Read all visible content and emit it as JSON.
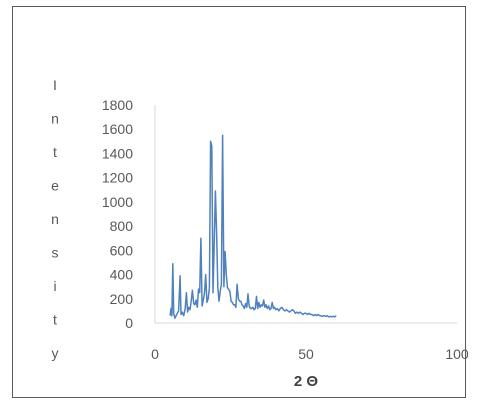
{
  "chart_data": {
    "type": "line",
    "title": "",
    "xlabel": "2 Θ",
    "ylabel": "Intensity",
    "xlim": [
      0,
      100
    ],
    "ylim": [
      0,
      1800
    ],
    "x_ticks": [
      0,
      50,
      100
    ],
    "y_ticks": [
      0,
      200,
      400,
      600,
      800,
      1000,
      1200,
      1400,
      1600,
      1800
    ],
    "grid": false,
    "legend": "none",
    "line_color": "#4f81bd",
    "series": [
      {
        "x": [
          5,
          5.3,
          5.6,
          5.9,
          6.2,
          6.6,
          7,
          7.4,
          7.8,
          8.3,
          8.6,
          9,
          9.5,
          10,
          10.4,
          10.8,
          11.2,
          11.6,
          12,
          12.4,
          12.8,
          13.2,
          13.6,
          14,
          14.4,
          14.8,
          15.2,
          15.6,
          16,
          16.4,
          16.8,
          17.2,
          17.6,
          18,
          18.4,
          18.8,
          19.2,
          19.6,
          20,
          20.4,
          20.8,
          21.2,
          21.6,
          22,
          22.4,
          22.8,
          23.2,
          23.6,
          24,
          24.4,
          24.8,
          25.2,
          25.6,
          26,
          26.4,
          26.8,
          27.2,
          27.6,
          28,
          28.4,
          28.8,
          29.2,
          29.6,
          30,
          30.4,
          30.8,
          31.2,
          31.6,
          32,
          32.4,
          32.8,
          33.2,
          33.6,
          34,
          34.4,
          34.8,
          35.2,
          35.6,
          36,
          36.4,
          36.8,
          37.2,
          37.6,
          38,
          38.4,
          38.8,
          39.2,
          39.6,
          40,
          40.5,
          41,
          41.5,
          42,
          42.5,
          43,
          43.5,
          44,
          44.5,
          45,
          45.5,
          46,
          46.5,
          47,
          47.5,
          48,
          48.5,
          49,
          49.5,
          50,
          50.5,
          51,
          51.5,
          52,
          52.5,
          53,
          53.5,
          54,
          54.5,
          55,
          55.5,
          56,
          56.5,
          57,
          57.5,
          58,
          58.5,
          59,
          59.5,
          60
        ],
        "y": [
          60,
          120,
          60,
          490,
          80,
          40,
          60,
          80,
          100,
          390,
          70,
          90,
          60,
          120,
          250,
          90,
          130,
          110,
          180,
          270,
          160,
          150,
          190,
          130,
          280,
          250,
          700,
          140,
          190,
          250,
          400,
          170,
          200,
          290,
          1500,
          1460,
          250,
          650,
          1090,
          750,
          300,
          180,
          260,
          320,
          1550,
          300,
          590,
          400,
          290,
          280,
          260,
          180,
          170,
          150,
          150,
          130,
          320,
          200,
          180,
          180,
          150,
          140,
          120,
          160,
          130,
          240,
          140,
          120,
          120,
          130,
          110,
          120,
          220,
          120,
          170,
          130,
          150,
          140,
          190,
          130,
          150,
          120,
          140,
          110,
          120,
          170,
          120,
          130,
          110,
          120,
          100,
          120,
          130,
          110,
          100,
          110,
          100,
          90,
          100,
          110,
          100,
          80,
          90,
          80,
          90,
          80,
          70,
          80,
          80,
          70,
          80,
          70,
          70,
          60,
          70,
          60,
          70,
          60,
          60,
          55,
          60,
          55,
          60,
          50,
          55,
          50,
          55,
          50,
          60
        ]
      }
    ]
  }
}
